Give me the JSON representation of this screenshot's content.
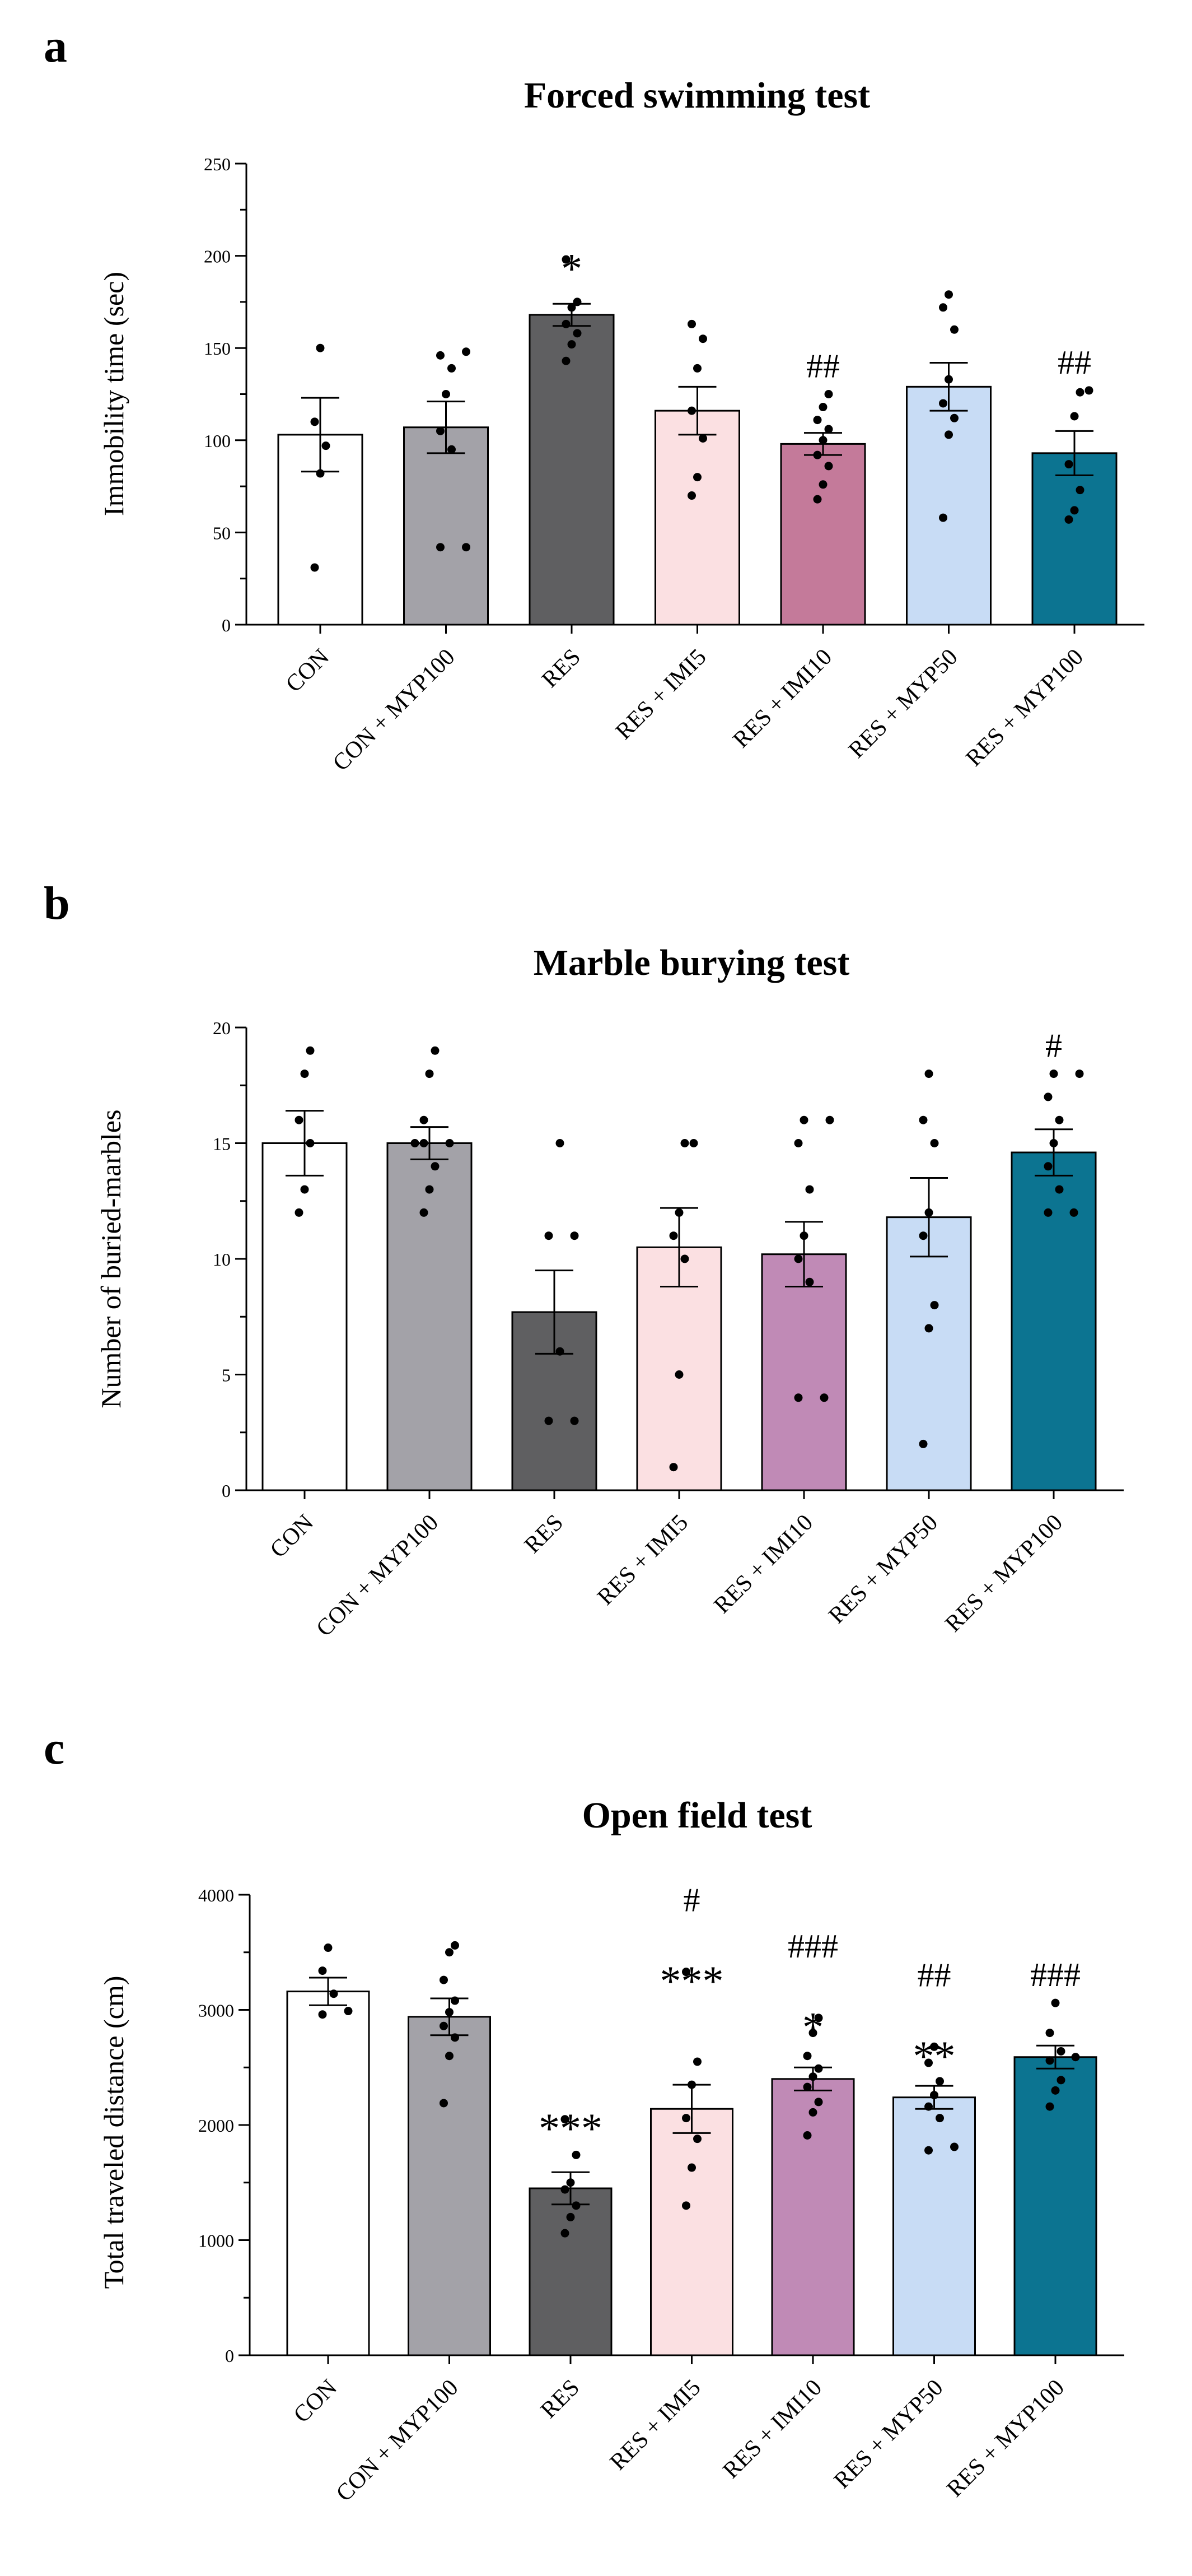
{
  "chart_data": [
    {
      "panel_label": "a",
      "type": "bar",
      "title": "Forced swimming test",
      "xlabel": "",
      "ylabel": "Immobility time (sec)",
      "ylim": [
        0,
        250
      ],
      "yticks": [
        0,
        50,
        100,
        150,
        200,
        250
      ],
      "categories": [
        "CON",
        "CON + MYP100",
        "RES",
        "RES + IMI5",
        "RES + IMI10",
        "RES + MYP50",
        "RES + MYP100"
      ],
      "colors": [
        "#ffffff",
        "#a3a2a8",
        "#5f5f61",
        "#fbe0e2",
        "#c47a9a",
        "#c8dcf5",
        "#0c7491"
      ],
      "values": [
        103,
        107,
        168,
        116,
        98,
        129,
        93
      ],
      "errors": [
        20,
        14,
        6,
        13,
        6,
        13,
        12
      ],
      "points": [
        [
          31,
          82,
          97,
          110,
          150
        ],
        [
          42,
          42,
          95,
          105,
          125,
          139,
          146,
          148
        ],
        [
          143,
          152,
          158,
          163,
          172,
          175,
          198
        ],
        [
          70,
          80,
          101,
          116,
          139,
          155,
          163
        ],
        [
          68,
          76,
          86,
          92,
          100,
          106,
          111,
          118,
          125
        ],
        [
          58,
          103,
          112,
          120,
          133,
          160,
          172,
          179
        ],
        [
          57,
          62,
          73,
          87,
          113,
          126,
          127
        ]
      ],
      "annotations": [
        {
          "category": "RES",
          "text": "*"
        },
        {
          "category": "RES + IMI10",
          "text": "##"
        },
        {
          "category": "RES + MYP100",
          "text": "##"
        }
      ]
    },
    {
      "panel_label": "b",
      "type": "bar",
      "title": "Marble burying test",
      "xlabel": "",
      "ylabel": "Number of  buried-marbles",
      "ylim": [
        0,
        20
      ],
      "yticks": [
        0,
        5,
        10,
        15,
        20
      ],
      "categories": [
        "CON",
        "CON + MYP100",
        "RES",
        "RES + IMI5",
        "RES + IMI10",
        "RES + MYP50",
        "RES + MYP100"
      ],
      "colors": [
        "#ffffff",
        "#a3a2a8",
        "#5f5f61",
        "#fbe0e2",
        "#c08ab6",
        "#c8dcf5",
        "#0c7491"
      ],
      "values": [
        15,
        15,
        7.7,
        10.5,
        10.2,
        11.8,
        14.6
      ],
      "errors": [
        1.4,
        0.7,
        1.8,
        1.7,
        1.4,
        1.7,
        1.0
      ],
      "points": [
        [
          12,
          13,
          15,
          16,
          18,
          19
        ],
        [
          12,
          13,
          14,
          15,
          15,
          15,
          16,
          18,
          19
        ],
        [
          3,
          3,
          6,
          11,
          11,
          15
        ],
        [
          1,
          5,
          10,
          11,
          12,
          15,
          15
        ],
        [
          4,
          4,
          9,
          10,
          11,
          13,
          15,
          16,
          16
        ],
        [
          2,
          7,
          8,
          11,
          12,
          15,
          16,
          18
        ],
        [
          12,
          12,
          13,
          14,
          15,
          16,
          17,
          18,
          18
        ]
      ],
      "annotations": [
        {
          "category": "RES + MYP100",
          "text": "#"
        }
      ]
    },
    {
      "panel_label": "c",
      "type": "bar",
      "title": "Open field test",
      "xlabel": "",
      "ylabel": "Total traveled distance (cm)",
      "ylim": [
        0,
        4000
      ],
      "yticks": [
        0,
        1000,
        2000,
        3000,
        4000
      ],
      "categories": [
        "CON",
        "CON + MYP100",
        "RES",
        "RES + IMI5",
        "RES + IMI10",
        "RES + MYP50",
        "RES + MYP100"
      ],
      "colors": [
        "#ffffff",
        "#a3a2a8",
        "#5f5f61",
        "#fbe0e2",
        "#c08ab6",
        "#c8dcf5",
        "#0c7491"
      ],
      "values": [
        3160,
        2940,
        1450,
        2140,
        2400,
        2240,
        2590
      ],
      "errors": [
        120,
        160,
        140,
        210,
        100,
        100,
        100
      ],
      "points": [
        [
          2960,
          2990,
          3140,
          3340,
          3540
        ],
        [
          2190,
          2600,
          2760,
          2860,
          2980,
          3080,
          3260,
          3500,
          3560
        ],
        [
          1060,
          1200,
          1300,
          1440,
          1500,
          1740,
          2050
        ],
        [
          1300,
          1630,
          1880,
          2060,
          2350,
          2550,
          3330
        ],
        [
          1910,
          2110,
          2200,
          2330,
          2420,
          2490,
          2600,
          2800,
          2930
        ],
        [
          1780,
          1810,
          2060,
          2160,
          2260,
          2380,
          2540,
          2680
        ],
        [
          2160,
          2300,
          2390,
          2560,
          2590,
          2640,
          2800,
          3060
        ]
      ],
      "annotations": [
        {
          "category": "RES",
          "text": "***"
        },
        {
          "category": "RES + IMI5",
          "text": "***"
        },
        {
          "category": "RES + IMI5",
          "text": "#"
        },
        {
          "category": "RES + IMI10",
          "text": "*"
        },
        {
          "category": "RES + IMI10",
          "text": "###"
        },
        {
          "category": "RES + MYP50",
          "text": "**"
        },
        {
          "category": "RES + MYP50",
          "text": "##"
        },
        {
          "category": "RES + MYP100",
          "text": "###"
        }
      ]
    }
  ]
}
